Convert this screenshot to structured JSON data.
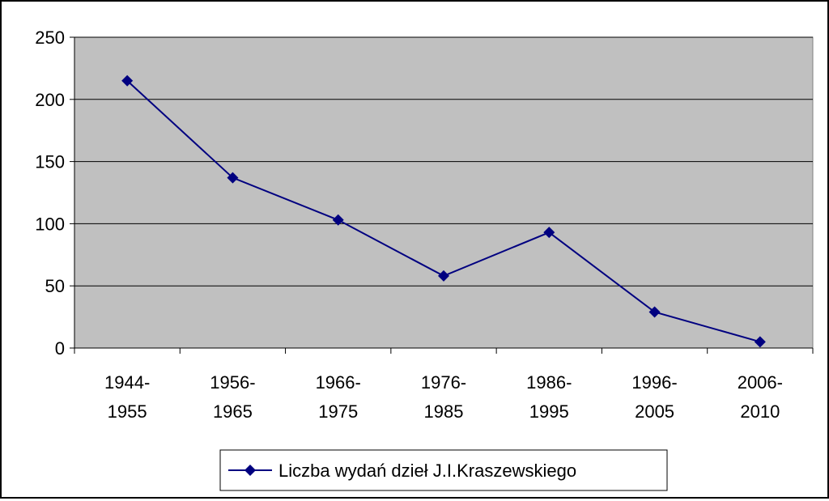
{
  "chart_data": {
    "type": "line",
    "title": "",
    "xlabel": "",
    "ylabel": "",
    "categories": [
      [
        "1944-",
        "1955"
      ],
      [
        "1956-",
        "1965"
      ],
      [
        "1966-",
        "1975"
      ],
      [
        "1976-",
        "1985"
      ],
      [
        "1986-",
        "1995"
      ],
      [
        "1996-",
        "2005"
      ],
      [
        "2006-",
        "2010"
      ]
    ],
    "series": [
      {
        "name": "Liczba wydań dzieł J.I.Kraszewskiego",
        "values": [
          215,
          137,
          103,
          58,
          93,
          29,
          5
        ],
        "color": "#000080",
        "marker": "diamond"
      }
    ],
    "ylim": [
      0,
      250
    ],
    "yticks": [
      0,
      50,
      100,
      150,
      200,
      250
    ],
    "grid": true,
    "plot_background": "#c0c0c0",
    "legend_position": "bottom"
  }
}
